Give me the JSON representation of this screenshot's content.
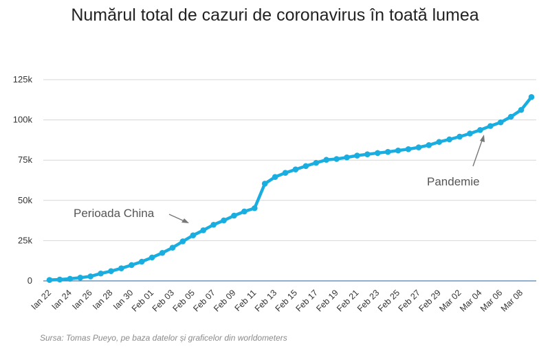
{
  "chart_data": {
    "type": "line",
    "title": "Numărul total de cazuri de coronavirus în toată lumea",
    "source": "Sursa: Tomas Pueyo, pe baza datelor și graficelor din worldometers",
    "xlabel": "",
    "ylabel": "",
    "ylim": [
      0,
      125000
    ],
    "y_ticks": [
      0,
      25000,
      50000,
      75000,
      100000,
      125000
    ],
    "y_tick_labels": [
      "0",
      "25k",
      "50k",
      "75k",
      "100k",
      "125k"
    ],
    "x_tick_labels": [
      "Ian 22",
      "Ian 24",
      "Ian 26",
      "Ian 28",
      "Ian 30",
      "Feb 01",
      "Feb 03",
      "Feb 05",
      "Feb 07",
      "Feb 09",
      "Feb 11",
      "Feb 13",
      "Feb 15",
      "Feb 17",
      "Feb 19",
      "Feb 21",
      "Feb 23",
      "Feb 25",
      "Feb 27",
      "Feb 29",
      "Mar 02",
      "Mar 04",
      "Mar 06",
      "Mar 08"
    ],
    "grid": true,
    "line_color": "#1aaee0",
    "annotations": [
      {
        "text": "Perioada China",
        "near": "Feb 04"
      },
      {
        "text": "Pandemie",
        "near": "Mar 04"
      }
    ],
    "x": [
      "Ian 22",
      "Ian 23",
      "Ian 24",
      "Ian 25",
      "Ian 26",
      "Ian 27",
      "Ian 28",
      "Ian 29",
      "Ian 30",
      "Ian 31",
      "Feb 01",
      "Feb 02",
      "Feb 03",
      "Feb 04",
      "Feb 05",
      "Feb 06",
      "Feb 07",
      "Feb 08",
      "Feb 09",
      "Feb 10",
      "Feb 11",
      "Feb 12",
      "Feb 13",
      "Feb 14",
      "Feb 15",
      "Feb 16",
      "Feb 17",
      "Feb 18",
      "Feb 19",
      "Feb 20",
      "Feb 21",
      "Feb 22",
      "Feb 23",
      "Feb 24",
      "Feb 25",
      "Feb 26",
      "Feb 27",
      "Feb 28",
      "Feb 29",
      "Mar 01",
      "Mar 02",
      "Mar 03",
      "Mar 04",
      "Mar 05",
      "Mar 06",
      "Mar 07",
      "Mar 08",
      "Mar 09"
    ],
    "series": [
      {
        "values": [
          580,
          845,
          1320,
          2010,
          2800,
          4590,
          6070,
          7820,
          9820,
          11950,
          14550,
          17390,
          20630,
          24550,
          28280,
          31450,
          34880,
          37560,
          40550,
          43100,
          45170,
          60380,
          64540,
          67120,
          69260,
          71330,
          73330,
          75200,
          75720,
          76720,
          77840,
          78640,
          79430,
          80130,
          81000,
          81830,
          82930,
          84340,
          86330,
          87890,
          89600,
          91520,
          93740,
          96200,
          98490,
          101960,
          106220,
          114200
        ]
      }
    ]
  }
}
